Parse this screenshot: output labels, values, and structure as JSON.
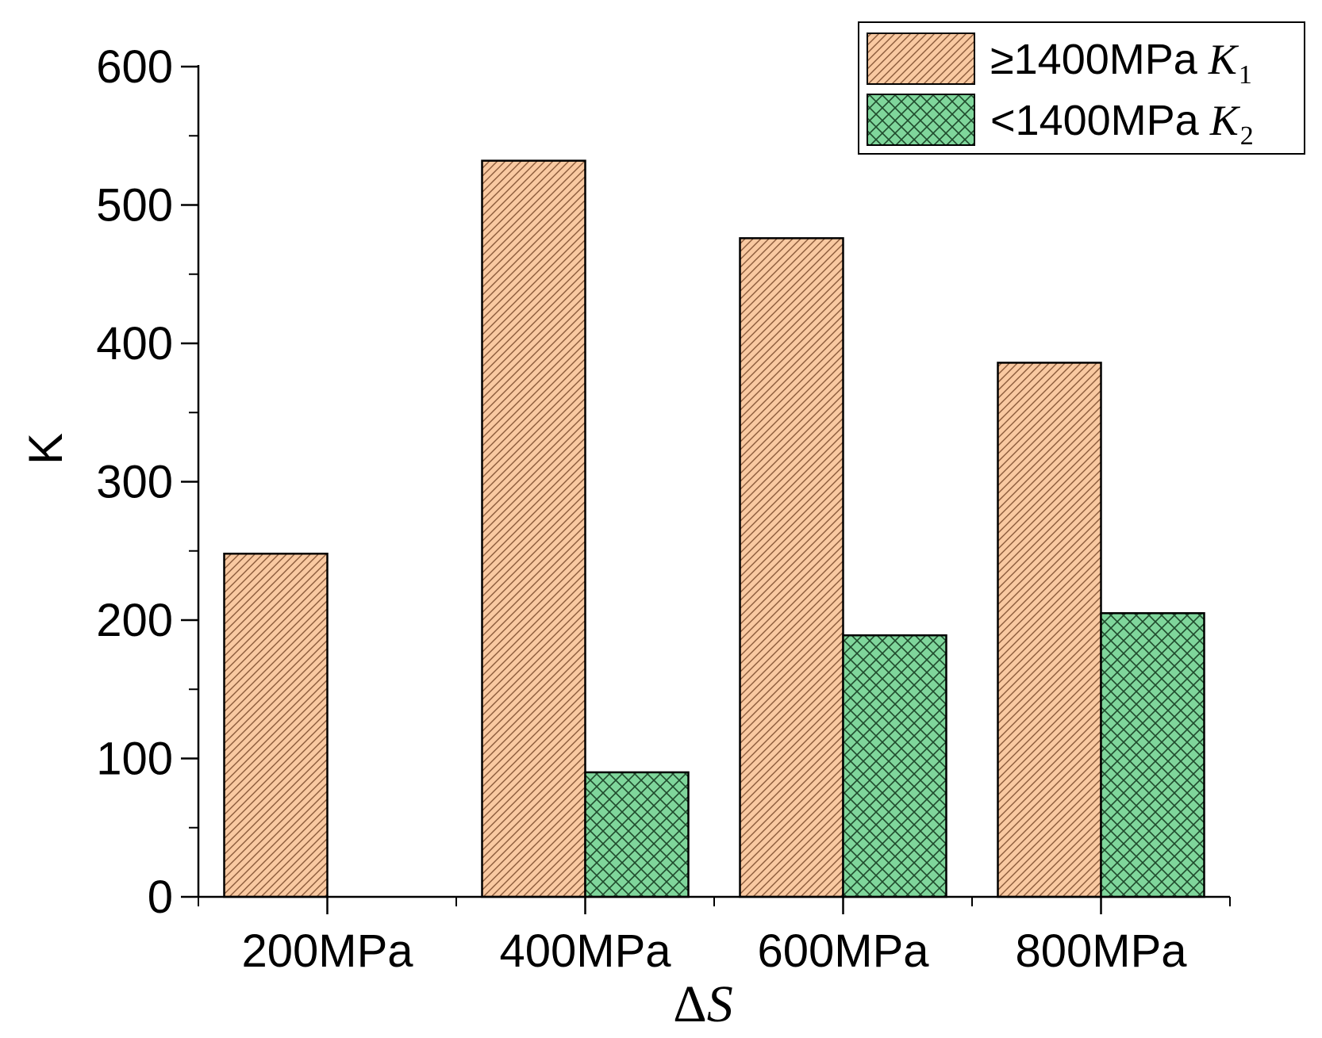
{
  "chart_data": {
    "type": "bar",
    "title": "",
    "xlabel_symbol": "Δ",
    "xlabel_var": "S",
    "ylabel": "K",
    "ylim": [
      0,
      600
    ],
    "yticks": [
      0,
      100,
      200,
      300,
      400,
      500,
      600
    ],
    "categories": [
      "200MPa",
      "400MPa",
      "600MPa",
      "800MPa"
    ],
    "legend_position": "top-right",
    "series": [
      {
        "name": "≥1400MPa",
        "symbol": "K",
        "subscript": "1",
        "color": "#F9C9A1",
        "hatch_color": "#8a5a3a",
        "pattern": "diagonal",
        "values": [
          248,
          532,
          476,
          386
        ]
      },
      {
        "name": "<1400MPa",
        "symbol": "K",
        "subscript": "2",
        "color": "#7FD69B",
        "hatch_color": "#1f4a2c",
        "pattern": "crosshatch",
        "values": [
          null,
          90,
          189,
          205
        ]
      }
    ]
  }
}
